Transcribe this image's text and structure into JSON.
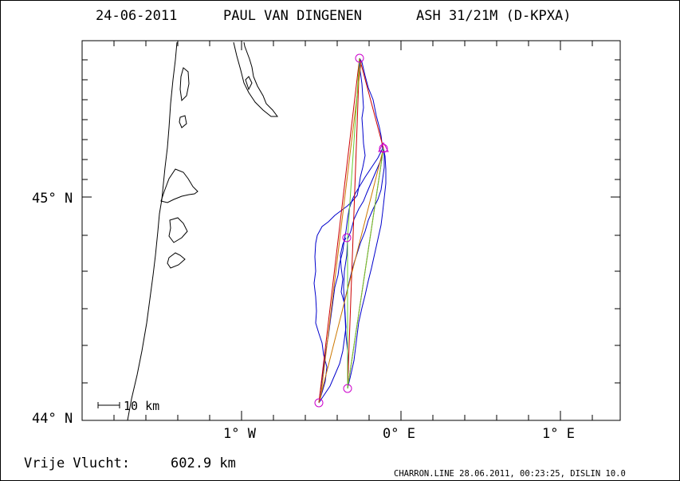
{
  "header": {
    "date": "24-06-2011",
    "pilot": "PAUL VAN DINGENEN",
    "glider": "ASH 31/21M (D-KPXA)"
  },
  "map": {
    "lat_labels": [
      "45° N",
      "44° N"
    ],
    "lon_labels": [
      "1° W",
      "0° E",
      "1° E"
    ],
    "scale_label": "10 km",
    "colors": {
      "coast": "#000000",
      "track": "#0000cc",
      "leg_red": "#cc0000",
      "leg_orange": "#cc7700",
      "leg_green": "#66cc33",
      "turnpoint": "#cc00cc"
    }
  },
  "footer": {
    "distance_label": "Vrije Vlucht:",
    "distance_value": "602.9 km",
    "software_info": "CHARRON.LINE 28.06.2011, 00:23:25, DISLIN 10.0"
  }
}
